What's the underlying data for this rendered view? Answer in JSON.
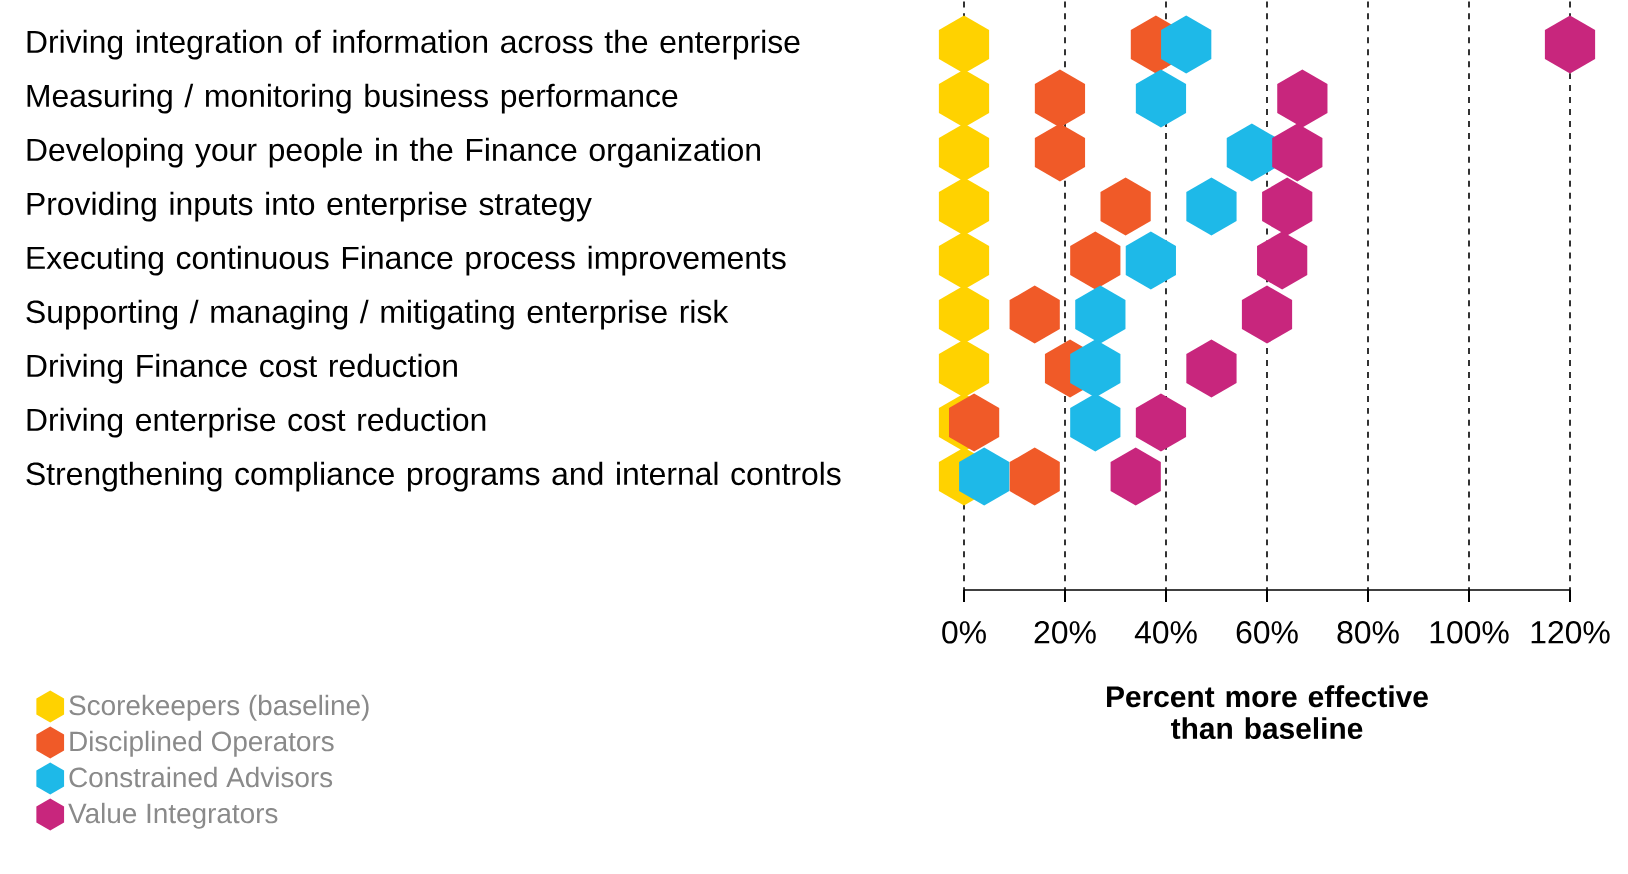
{
  "chart_data": {
    "type": "scatter",
    "orientation": "horizontal",
    "categories": [
      "Driving integration of information across the enterprise",
      "Measuring / monitoring business performance",
      "Developing your people in the Finance organization",
      "Providing inputs into enterprise strategy",
      "Executing continuous Finance process improvements",
      "Supporting / managing / mitigating enterprise risk",
      "Driving Finance cost reduction",
      "Driving enterprise cost reduction",
      "Strengthening compliance programs and internal controls"
    ],
    "series": [
      {
        "name": "Scorekeepers (baseline)",
        "color": "#ffd200",
        "values": [
          0,
          0,
          0,
          0,
          0,
          0,
          0,
          0,
          0
        ]
      },
      {
        "name": "Disciplined Operators",
        "color": "#f05a28",
        "values": [
          38,
          19,
          19,
          32,
          26,
          14,
          21,
          2,
          14
        ]
      },
      {
        "name": "Constrained Advisors",
        "color": "#1eb9e8",
        "values": [
          44,
          39,
          57,
          49,
          37,
          27,
          26,
          26,
          4
        ]
      },
      {
        "name": "Value Integrators",
        "color": "#c8267d",
        "values": [
          120,
          67,
          66,
          64,
          63,
          60,
          49,
          39,
          34
        ]
      }
    ],
    "xlim": [
      0,
      120
    ],
    "xticks": [
      {
        "value": 0,
        "label": "0%"
      },
      {
        "value": 20,
        "label": "20%"
      },
      {
        "value": 40,
        "label": "40%"
      },
      {
        "value": 60,
        "label": "60%"
      },
      {
        "value": 80,
        "label": "80%"
      },
      {
        "value": 100,
        "label": "100%"
      },
      {
        "value": 120,
        "label": "120%"
      }
    ],
    "xlabel": "Percent more effective than baseline",
    "grid": "x",
    "legend": "bottom left"
  }
}
